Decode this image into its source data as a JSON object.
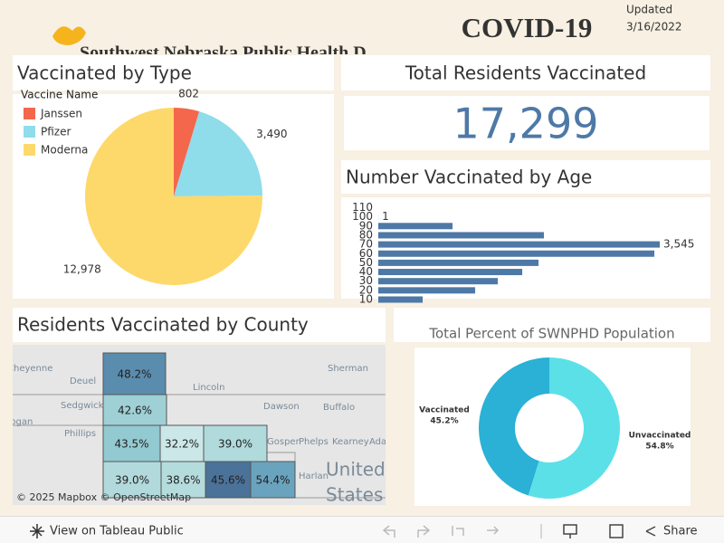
{
  "header": {
    "title": "COVID-19",
    "organization": "Southwest Nebraska Public Health D",
    "updated_label": "Updated",
    "updated_date": "3/16/2022"
  },
  "chart_data": [
    {
      "type": "pie",
      "title": "Vaccinated by Type",
      "legend_title": "Vaccine Name",
      "categories": [
        "Janssen",
        "Pfizer",
        "Moderna"
      ],
      "values": [
        802,
        3490,
        12978
      ],
      "value_labels": [
        "802",
        "3,490",
        "12,978"
      ],
      "colors": [
        "#f4674c",
        "#8fdceb",
        "#fdd96b"
      ]
    },
    {
      "type": "kpi",
      "title": "Total Residents Vaccinated",
      "values": [
        17299
      ],
      "value_labels": [
        "17,299"
      ],
      "color": "#4e79a7"
    },
    {
      "type": "hbar",
      "title": "Number Vaccinated by Age",
      "categories": [
        "110",
        "100",
        "90",
        "80",
        "70",
        "60",
        "50",
        "40",
        "30",
        "20",
        "10"
      ],
      "values": [
        null,
        1,
        935,
        2086,
        3545,
        3477,
        2018,
        1813,
        1505,
        1220,
        559
      ],
      "value_labels": [
        null,
        "1",
        null,
        null,
        "3,545",
        null,
        null,
        null,
        null,
        null,
        null
      ],
      "color": "#4e79a7"
    },
    {
      "type": "map",
      "title": "Residents Vaccinated by County",
      "values": [
        48.2,
        42.6,
        43.5,
        32.2,
        39.0,
        39.0,
        38.6,
        45.6,
        54.4
      ],
      "value_labels": [
        "48.2%",
        "42.6%",
        "43.5%",
        "32.2%",
        "39.0%",
        "39.0%",
        "38.6%",
        "45.6%",
        "54.4%"
      ],
      "colors": [
        "#5a8cad",
        "#9fd0d5",
        "#93c9d0",
        "#cbe7e7",
        "#b0dadc",
        "#b2dadc",
        "#b5dcdd",
        "#4b7298",
        "#6aa3bd"
      ],
      "places": [
        "Cheyenne",
        "Deuel",
        "Lincoln",
        "Sherman",
        "Sedgwick",
        "Dawson",
        "Buffalo",
        "Logan",
        "Phillips",
        "Gosper",
        "Phelps",
        "Kearney",
        "Adams",
        "Harlan",
        "United",
        "States"
      ],
      "attribution": "© 2025 Mapbox © OpenStreetMap"
    },
    {
      "type": "donut",
      "title": "Total Percent of SWNPHD Population",
      "categories": [
        "Vaccinated",
        "Unvaccinated"
      ],
      "values": [
        45.2,
        54.8
      ],
      "value_labels": [
        "45.2%",
        "54.8%"
      ],
      "colors": [
        "#2bb0d6",
        "#5ce0e8"
      ]
    }
  ],
  "toolbar": {
    "view_link": "View on Tableau Public",
    "share": "Share"
  }
}
